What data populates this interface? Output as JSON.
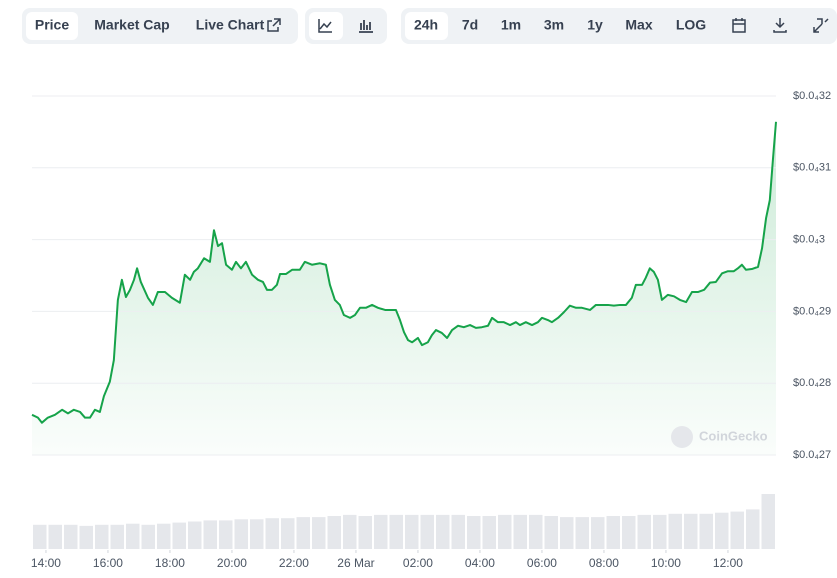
{
  "toolbar": {
    "tabs": [
      "Price",
      "Market Cap",
      "Live Chart"
    ],
    "ranges": [
      "24h",
      "7d",
      "1m",
      "3m",
      "1y",
      "Max",
      "LOG"
    ]
  },
  "watermark": "CoinGecko",
  "chart_data": [
    {
      "type": "line",
      "color": "#16a34a",
      "x": [
        -0.45,
        -0.26,
        -0.13,
        0.06,
        0.29,
        0.52,
        0.71,
        0.9,
        1.1,
        1.26,
        1.42,
        1.58,
        1.74,
        1.87,
        2.06,
        2.19,
        2.32,
        2.45,
        2.58,
        2.71,
        2.84,
        2.94,
        3.06,
        3.29,
        3.45,
        3.61,
        3.84,
        4.06,
        4.32,
        4.48,
        4.65,
        4.77,
        4.9,
        5.1,
        5.29,
        5.42,
        5.55,
        5.68,
        5.81,
        6.0,
        6.13,
        6.29,
        6.45,
        6.65,
        6.84,
        7.0,
        7.13,
        7.29,
        7.45,
        7.55,
        7.74,
        7.94,
        8.19,
        8.35,
        8.58,
        8.84,
        9.03,
        9.16,
        9.32,
        9.48,
        9.61,
        9.81,
        9.97,
        10.13,
        10.32,
        10.52,
        10.71,
        10.94,
        11.1,
        11.29,
        11.42,
        11.55,
        11.68,
        11.81,
        12.0,
        12.13,
        12.32,
        12.45,
        12.58,
        12.77,
        12.94,
        13.1,
        13.29,
        13.48,
        13.68,
        13.87,
        14.06,
        14.26,
        14.39,
        14.58,
        14.77,
        14.97,
        15.16,
        15.29,
        15.48,
        15.68,
        15.87,
        16.0,
        16.19,
        16.32,
        16.52,
        16.71,
        16.9,
        17.1,
        17.29,
        17.55,
        17.74,
        17.94,
        18.13,
        18.32,
        18.52,
        18.71,
        18.9,
        19.03,
        19.23,
        19.35,
        19.48,
        19.61,
        19.74,
        19.87,
        20.06,
        20.26,
        20.45,
        20.65,
        20.84,
        21.03,
        21.23,
        21.42,
        21.61,
        21.81,
        22.0,
        22.19,
        22.32,
        22.45,
        22.58,
        22.77,
        22.97,
        23.1,
        23.23,
        23.35,
        23.45,
        23.55
      ],
      "values": [
        2.756e-05,
        2.752e-05,
        2.745e-05,
        2.752e-05,
        2.756e-05,
        2.763e-05,
        2.758e-05,
        2.763e-05,
        2.76e-05,
        2.752e-05,
        2.752e-05,
        2.763e-05,
        2.76e-05,
        2.782e-05,
        2.802e-05,
        2.832e-05,
        2.916e-05,
        2.944e-05,
        2.92e-05,
        2.93e-05,
        2.944e-05,
        2.96e-05,
        2.941e-05,
        2.919e-05,
        2.909e-05,
        2.927e-05,
        2.927e-05,
        2.919e-05,
        2.912e-05,
        2.951e-05,
        2.944e-05,
        2.955e-05,
        2.96e-05,
        2.974e-05,
        2.969e-05,
        3.013e-05,
        2.991e-05,
        2.995e-05,
        2.965e-05,
        2.958e-05,
        2.969e-05,
        2.96e-05,
        2.969e-05,
        2.951e-05,
        2.944e-05,
        2.941e-05,
        2.93e-05,
        2.93e-05,
        2.937e-05,
        2.952e-05,
        2.952e-05,
        2.958e-05,
        2.958e-05,
        2.969e-05,
        2.965e-05,
        2.967e-05,
        2.965e-05,
        2.937e-05,
        2.916e-05,
        2.909e-05,
        2.895e-05,
        2.891e-05,
        2.895e-05,
        2.905e-05,
        2.905e-05,
        2.909e-05,
        2.905e-05,
        2.902e-05,
        2.902e-05,
        2.902e-05,
        2.888e-05,
        2.871e-05,
        2.86e-05,
        2.857e-05,
        2.863e-05,
        2.853e-05,
        2.857e-05,
        2.867e-05,
        2.874e-05,
        2.87e-05,
        2.863e-05,
        2.874e-05,
        2.88e-05,
        2.878e-05,
        2.881e-05,
        2.877e-05,
        2.878e-05,
        2.88e-05,
        2.891e-05,
        2.885e-05,
        2.885e-05,
        2.881e-05,
        2.885e-05,
        2.881e-05,
        2.885e-05,
        2.881e-05,
        2.885e-05,
        2.891e-05,
        2.888e-05,
        2.885e-05,
        2.891e-05,
        2.899e-05,
        2.908e-05,
        2.905e-05,
        2.905e-05,
        2.902e-05,
        2.909e-05,
        2.909e-05,
        2.909e-05,
        2.908e-05,
        2.909e-05,
        2.909e-05,
        2.919e-05,
        2.937e-05,
        2.937e-05,
        2.947e-05,
        2.96e-05,
        2.955e-05,
        2.944e-05,
        2.916e-05,
        2.923e-05,
        2.921e-05,
        2.916e-05,
        2.913e-05,
        2.927e-05,
        2.927e-05,
        2.93e-05,
        2.94e-05,
        2.941e-05,
        2.953e-05,
        2.956e-05,
        2.956e-05,
        2.96e-05,
        2.965e-05,
        2.958e-05,
        2.959e-05,
        2.962e-05,
        2.988e-05,
        3.03e-05,
        3.055e-05,
        3.111e-05,
        3.164e-05
      ],
      "xlim": [
        -0.45,
        23.55
      ],
      "xticks": [
        {
          "value": 0,
          "label": "14:00"
        },
        {
          "value": 2,
          "label": "16:00"
        },
        {
          "value": 4,
          "label": "18:00"
        },
        {
          "value": 6,
          "label": "20:00"
        },
        {
          "value": 8,
          "label": "22:00"
        },
        {
          "value": 10,
          "label": "26 Mar"
        },
        {
          "value": 12,
          "label": "02:00"
        },
        {
          "value": 14,
          "label": "04:00"
        },
        {
          "value": 16,
          "label": "06:00"
        },
        {
          "value": 18,
          "label": "08:00"
        },
        {
          "value": 20,
          "label": "10:00"
        },
        {
          "value": 22,
          "label": "12:00"
        }
      ],
      "ylim": [
        2.7e-05,
        3.2e-05
      ],
      "yticks": [
        {
          "value": 3.2e-05,
          "label": "$0.0₄32"
        },
        {
          "value": 3.1e-05,
          "label": "$0.0₄31"
        },
        {
          "value": 3e-05,
          "label": "$0.0₄3"
        },
        {
          "value": 2.9e-05,
          "label": "$0.0₄29"
        },
        {
          "value": 2.8e-05,
          "label": "$0.0₄28"
        },
        {
          "value": 2.7e-05,
          "label": "$0.0₄27"
        }
      ],
      "grid": true
    },
    {
      "type": "bar",
      "color": "#e5e7eb",
      "values": [
        22,
        22,
        22,
        21,
        22,
        22,
        23,
        22,
        23,
        24,
        25,
        26,
        26,
        27,
        27,
        28,
        28,
        29,
        29,
        30,
        31,
        30,
        31,
        31,
        31,
        31,
        31,
        31,
        30,
        30,
        31,
        31,
        31,
        30,
        29,
        29,
        29,
        30,
        30,
        31,
        31,
        32,
        32,
        32,
        33,
        34,
        36,
        50
      ]
    }
  ]
}
